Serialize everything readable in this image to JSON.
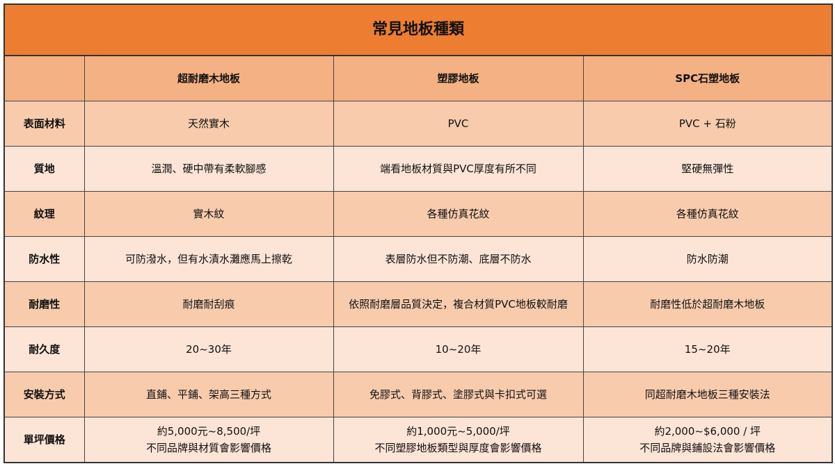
{
  "title": "常見地板種類",
  "columns": [
    "",
    "超耐磨木地板",
    "塑膠地板",
    "SPC石塑地板"
  ],
  "rows": [
    {
      "label": "表面材料",
      "cells": [
        "天然實木",
        "PVC",
        "PVC + 石粉"
      ]
    },
    {
      "label": "質地",
      "cells": [
        "溫潤、硬中帶有柔軟腳感",
        "端看地板材質與PVC厚度有所不同",
        "堅硬無彈性"
      ]
    },
    {
      "label": "紋理",
      "cells": [
        "實木紋",
        "各種仿真花紋",
        "各種仿真花紋"
      ]
    },
    {
      "label": "防水性",
      "cells": [
        "可防潑水，但有水漬水灘應馬上擦乾",
        "表層防水但不防潮、底層不防水",
        "防水防潮"
      ]
    },
    {
      "label": "耐磨性",
      "cells": [
        "耐磨耐刮痕",
        "依照耐磨層品質決定，複合材質PVC地板較耐磨",
        "耐磨性低於超耐磨木地板"
      ]
    },
    {
      "label": "耐久度",
      "cells": [
        "20~30年",
        "10~20年",
        "15~20年"
      ]
    },
    {
      "label": "安裝方式",
      "cells": [
        "直鋪、平鋪、架高三種方式",
        "免膠式、背膠式、塗膠式與卡扣式可選",
        "同超耐磨木地板三種安裝法"
      ]
    },
    {
      "label": "單坪價格",
      "cells": [
        [
          "約5,000元~8,500/坪",
          "不同品牌與材質會影響價格"
        ],
        [
          "約1,000元~5,000/坪",
          "不同塑膠地板類型與厚度會影響價格"
        ],
        [
          "約2,000~$6,000 / 坪",
          "不同品牌與鋪設法會影響價格"
        ]
      ]
    }
  ],
  "colors": {
    "title_bg": "#ED7D31",
    "header_bg": "#F4B183",
    "row_dark": "#F8CBAD",
    "row_light": "#FCE4D6"
  }
}
